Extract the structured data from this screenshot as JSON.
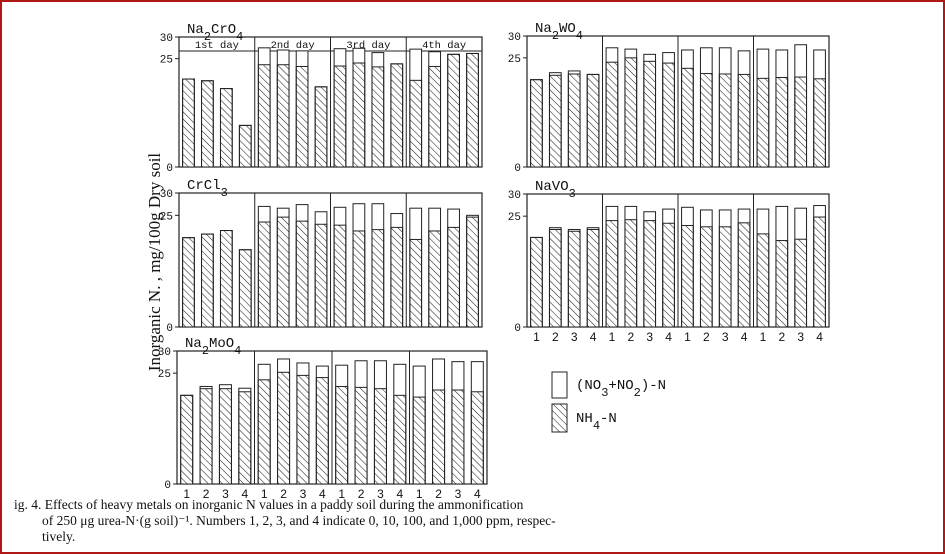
{
  "y_axis_label": "Inorganic N. ,  mg/100g Dry soil",
  "caption": {
    "line1": "ig. 4.   Effects of heavy metals on inorganic N values in a paddy soil during the ammonification",
    "line2": "of 250 μg urea-N·(g soil)⁻¹. Numbers 1, 2, 3, and 4 indicate 0, 10, 100, and 1,000 ppm, respec-",
    "line3": "tively."
  },
  "legend": {
    "total": "(NO3+NO2)-N",
    "nh4": "NH4-N"
  },
  "chart_data": [
    {
      "type": "bar",
      "title": "Na2CrO4",
      "ylim": [
        0,
        30
      ],
      "yticks": [
        "0",
        "25",
        "30"
      ],
      "day_labels": [
        "1st day",
        "2nd day",
        "3rd day",
        "4th day"
      ],
      "categories": [
        "1",
        "2",
        "3",
        "4",
        "1",
        "2",
        "3",
        "4",
        "1",
        "2",
        "3",
        "4",
        "1",
        "2",
        "3",
        "4"
      ],
      "series": [
        {
          "name": "(NO3+NO2)-N",
          "values": [
            20.3,
            19.9,
            18.1,
            9.6,
            27.5,
            27.0,
            26.8,
            18.5,
            27.3,
            27.4,
            26.4,
            23.8,
            27.2,
            26.6,
            26.0,
            26.2
          ]
        },
        {
          "name": "NH4-N",
          "values": [
            20.3,
            19.9,
            18.1,
            9.6,
            23.6,
            23.6,
            23.2,
            18.5,
            23.3,
            24.0,
            23.1,
            23.8,
            20.0,
            23.2,
            26.0,
            26.2
          ]
        }
      ]
    },
    {
      "type": "bar",
      "title": "Na2WO4",
      "ylim": [
        0,
        30
      ],
      "yticks": [
        "0",
        "25",
        "30"
      ],
      "categories": [
        "1",
        "2",
        "3",
        "4",
        "1",
        "2",
        "3",
        "4",
        "1",
        "2",
        "3",
        "4",
        "1",
        "2",
        "3",
        "4"
      ],
      "series": [
        {
          "name": "(NO3+NO2)-N",
          "values": [
            20.0,
            21.6,
            22.0,
            21.2,
            27.3,
            27.0,
            25.8,
            26.2,
            26.8,
            27.3,
            27.3,
            26.6,
            27.0,
            26.8,
            28.0,
            26.8
          ]
        },
        {
          "name": "NH4-N",
          "values": [
            20.0,
            21.0,
            21.3,
            21.2,
            24.0,
            25.0,
            24.2,
            23.8,
            22.6,
            21.4,
            21.3,
            21.2,
            20.3,
            20.5,
            20.6,
            20.2
          ]
        }
      ]
    },
    {
      "type": "bar",
      "title": "CrCl3",
      "ylim": [
        0,
        30
      ],
      "yticks": [
        "0",
        "25",
        "30"
      ],
      "categories": [
        "1",
        "2",
        "3",
        "4",
        "1",
        "2",
        "3",
        "4",
        "1",
        "2",
        "3",
        "4",
        "1",
        "2",
        "3",
        "4"
      ],
      "series": [
        {
          "name": "(NO3+NO2)-N",
          "values": [
            20.0,
            20.8,
            21.6,
            17.3,
            27.0,
            26.6,
            27.4,
            25.8,
            26.8,
            27.6,
            27.6,
            25.4,
            26.6,
            26.6,
            26.4,
            25.0
          ]
        },
        {
          "name": "NH4-N",
          "values": [
            20.0,
            20.8,
            21.6,
            17.3,
            23.5,
            24.6,
            23.7,
            23.0,
            22.8,
            21.5,
            21.8,
            22.3,
            19.6,
            21.5,
            22.3,
            24.6
          ]
        }
      ]
    },
    {
      "type": "bar",
      "title": "NaVO3",
      "ylim": [
        0,
        30
      ],
      "yticks": [
        "0",
        "25",
        "30"
      ],
      "xticks": [
        "1",
        "2",
        "3",
        "4",
        "1",
        "2",
        "3",
        "4",
        "1",
        "2",
        "3",
        "4",
        "1",
        "2",
        "3",
        "4"
      ],
      "categories": [
        "1",
        "2",
        "3",
        "4",
        "1",
        "2",
        "3",
        "4",
        "1",
        "2",
        "3",
        "4",
        "1",
        "2",
        "3",
        "4"
      ],
      "series": [
        {
          "name": "(NO3+NO2)-N",
          "values": [
            20.2,
            22.4,
            22.0,
            22.4,
            27.2,
            27.2,
            26.0,
            26.6,
            27.0,
            26.4,
            26.4,
            26.6,
            26.6,
            27.2,
            26.8,
            27.4
          ]
        },
        {
          "name": "NH4-N",
          "values": [
            20.2,
            22.0,
            21.6,
            22.0,
            24.0,
            24.2,
            24.0,
            23.4,
            22.9,
            22.6,
            22.6,
            23.5,
            21.0,
            19.5,
            19.8,
            24.8
          ]
        }
      ]
    },
    {
      "type": "bar",
      "title": "Na2MoO4",
      "ylim": [
        0,
        30
      ],
      "yticks": [
        "0",
        "25",
        "30"
      ],
      "xticks": [
        "1",
        "2",
        "3",
        "4",
        "1",
        "2",
        "3",
        "4",
        "1",
        "2",
        "3",
        "4",
        "1",
        "2",
        "3",
        "4"
      ],
      "categories": [
        "1",
        "2",
        "3",
        "4",
        "1",
        "2",
        "3",
        "4",
        "1",
        "2",
        "3",
        "4",
        "1",
        "2",
        "3",
        "4"
      ],
      "series": [
        {
          "name": "(NO3+NO2)-N",
          "values": [
            20.0,
            22.0,
            22.4,
            21.6,
            27.0,
            28.2,
            27.3,
            26.6,
            26.8,
            27.8,
            27.8,
            27.0,
            26.6,
            28.2,
            27.6,
            27.6
          ]
        },
        {
          "name": "NH4-N",
          "values": [
            20.0,
            21.5,
            21.5,
            20.8,
            23.5,
            25.2,
            24.5,
            24.0,
            22.0,
            21.8,
            21.5,
            20.0,
            19.6,
            21.2,
            21.2,
            20.8
          ]
        }
      ]
    }
  ]
}
